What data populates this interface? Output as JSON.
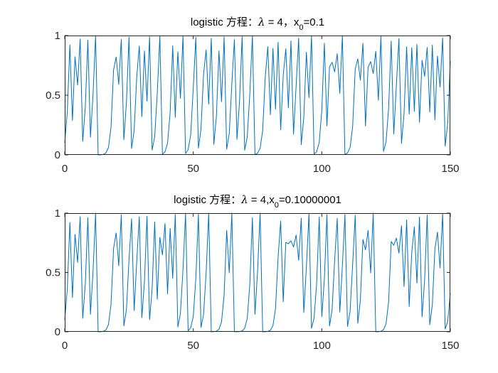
{
  "chart_data": [
    {
      "type": "line",
      "title": "logistic 方程：λ = 4，x₀=0.1",
      "title_parts": {
        "prefix": "logistic 方程：",
        "lambda": "λ",
        "mid": " = 4，x",
        "sub": "0",
        "suffix": "=0.1"
      },
      "xlabel": "",
      "ylabel": "",
      "xlim": [
        0,
        150
      ],
      "ylim": [
        0,
        1
      ],
      "xticks": [
        "0",
        "50",
        "100",
        "150"
      ],
      "yticks": [
        "0",
        "0.5",
        "1"
      ],
      "grid": false,
      "series": [
        {
          "color": "#0072BD",
          "lambda": 4,
          "x0": 0.1,
          "n_points": 151
        }
      ]
    },
    {
      "type": "line",
      "title": "logistic 方程：λ = 4,x₀=0.10000001",
      "title_parts": {
        "prefix": "logistic 方程：",
        "lambda": "λ",
        "mid": " = 4,x",
        "sub": "0",
        "suffix": "=0.10000001"
      },
      "xlabel": "",
      "ylabel": "",
      "xlim": [
        0,
        150
      ],
      "ylim": [
        0,
        1
      ],
      "xticks": [
        "0",
        "50",
        "100",
        "150"
      ],
      "yticks": [
        "0",
        "0.5",
        "1"
      ],
      "grid": false,
      "series": [
        {
          "color": "#0072BD",
          "lambda": 4,
          "x0": 0.10000001,
          "n_points": 151
        }
      ]
    }
  ]
}
